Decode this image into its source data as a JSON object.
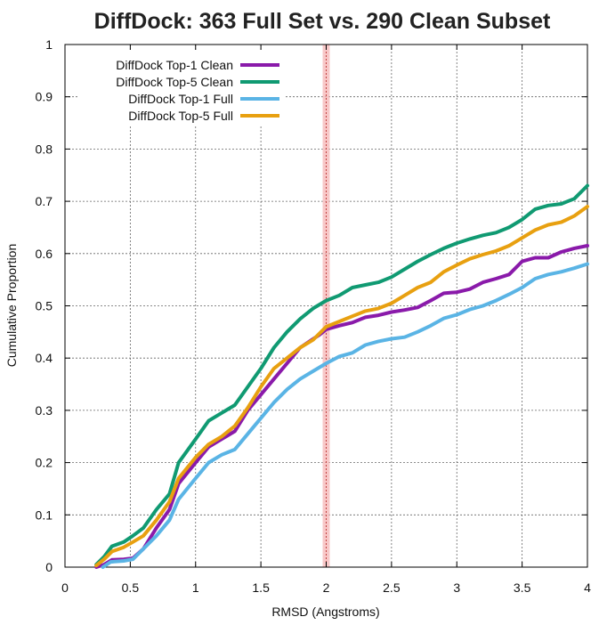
{
  "chart_data": {
    "type": "line",
    "title": "DiffDock: 363 Full Set vs. 290 Clean Subset",
    "xlabel": "RMSD (Angstroms)",
    "ylabel": "Cumulative Proportion",
    "xlim": [
      0,
      4
    ],
    "ylim": [
      0,
      1
    ],
    "x_ticks": [
      "0",
      "0.5",
      "1",
      "1.5",
      "2",
      "2.5",
      "3",
      "3.5",
      "4"
    ],
    "y_ticks": [
      "0",
      "0.1",
      "0.2",
      "0.3",
      "0.4",
      "0.5",
      "0.6",
      "0.7",
      "0.8",
      "0.9",
      "1"
    ],
    "grid": true,
    "legend_position": "top-left",
    "threshold_line": {
      "x": 2,
      "color": "#f6b6b6"
    },
    "series": [
      {
        "name": "DiffDock Top-1 Clean",
        "color": "#8a1aaa",
        "points": [
          [
            0.24,
            0.0
          ],
          [
            0.3,
            0.005
          ],
          [
            0.36,
            0.014
          ],
          [
            0.45,
            0.015
          ],
          [
            0.52,
            0.017
          ],
          [
            0.6,
            0.035
          ],
          [
            0.7,
            0.075
          ],
          [
            0.8,
            0.11
          ],
          [
            0.87,
            0.16
          ],
          [
            1.0,
            0.2
          ],
          [
            1.1,
            0.23
          ],
          [
            1.2,
            0.245
          ],
          [
            1.3,
            0.26
          ],
          [
            1.4,
            0.3
          ],
          [
            1.5,
            0.33
          ],
          [
            1.6,
            0.36
          ],
          [
            1.7,
            0.39
          ],
          [
            1.8,
            0.42
          ],
          [
            1.95,
            0.445
          ],
          [
            2.0,
            0.455
          ],
          [
            2.1,
            0.462
          ],
          [
            2.2,
            0.468
          ],
          [
            2.3,
            0.478
          ],
          [
            2.4,
            0.482
          ],
          [
            2.5,
            0.488
          ],
          [
            2.6,
            0.492
          ],
          [
            2.7,
            0.497
          ],
          [
            2.8,
            0.51
          ],
          [
            2.9,
            0.524
          ],
          [
            3.0,
            0.526
          ],
          [
            3.1,
            0.532
          ],
          [
            3.2,
            0.545
          ],
          [
            3.3,
            0.552
          ],
          [
            3.4,
            0.56
          ],
          [
            3.5,
            0.585
          ],
          [
            3.6,
            0.592
          ],
          [
            3.7,
            0.592
          ],
          [
            3.8,
            0.603
          ],
          [
            3.9,
            0.61
          ],
          [
            4.0,
            0.615
          ]
        ]
      },
      {
        "name": "DiffDock Top-5 Clean",
        "color": "#109a72",
        "points": [
          [
            0.24,
            0.005
          ],
          [
            0.3,
            0.02
          ],
          [
            0.36,
            0.04
          ],
          [
            0.45,
            0.048
          ],
          [
            0.52,
            0.06
          ],
          [
            0.6,
            0.075
          ],
          [
            0.7,
            0.11
          ],
          [
            0.8,
            0.14
          ],
          [
            0.87,
            0.2
          ],
          [
            1.0,
            0.245
          ],
          [
            1.1,
            0.28
          ],
          [
            1.2,
            0.295
          ],
          [
            1.3,
            0.31
          ],
          [
            1.4,
            0.345
          ],
          [
            1.5,
            0.38
          ],
          [
            1.6,
            0.42
          ],
          [
            1.7,
            0.45
          ],
          [
            1.8,
            0.475
          ],
          [
            1.9,
            0.495
          ],
          [
            2.0,
            0.51
          ],
          [
            2.1,
            0.52
          ],
          [
            2.2,
            0.535
          ],
          [
            2.3,
            0.54
          ],
          [
            2.4,
            0.545
          ],
          [
            2.5,
            0.555
          ],
          [
            2.6,
            0.57
          ],
          [
            2.7,
            0.585
          ],
          [
            2.8,
            0.598
          ],
          [
            2.9,
            0.61
          ],
          [
            3.0,
            0.62
          ],
          [
            3.1,
            0.628
          ],
          [
            3.2,
            0.635
          ],
          [
            3.3,
            0.64
          ],
          [
            3.4,
            0.65
          ],
          [
            3.5,
            0.665
          ],
          [
            3.6,
            0.685
          ],
          [
            3.7,
            0.692
          ],
          [
            3.8,
            0.695
          ],
          [
            3.9,
            0.705
          ],
          [
            4.0,
            0.73
          ]
        ]
      },
      {
        "name": "DiffDock Top-1 Full",
        "color": "#5ab4e5",
        "points": [
          [
            0.29,
            0.0
          ],
          [
            0.35,
            0.01
          ],
          [
            0.45,
            0.012
          ],
          [
            0.52,
            0.015
          ],
          [
            0.6,
            0.035
          ],
          [
            0.7,
            0.06
          ],
          [
            0.8,
            0.09
          ],
          [
            0.87,
            0.13
          ],
          [
            1.0,
            0.17
          ],
          [
            1.1,
            0.2
          ],
          [
            1.2,
            0.215
          ],
          [
            1.3,
            0.225
          ],
          [
            1.4,
            0.255
          ],
          [
            1.5,
            0.285
          ],
          [
            1.6,
            0.315
          ],
          [
            1.7,
            0.34
          ],
          [
            1.8,
            0.36
          ],
          [
            1.9,
            0.375
          ],
          [
            2.0,
            0.39
          ],
          [
            2.1,
            0.403
          ],
          [
            2.2,
            0.41
          ],
          [
            2.3,
            0.425
          ],
          [
            2.4,
            0.432
          ],
          [
            2.5,
            0.437
          ],
          [
            2.6,
            0.44
          ],
          [
            2.7,
            0.45
          ],
          [
            2.8,
            0.462
          ],
          [
            2.9,
            0.476
          ],
          [
            3.0,
            0.483
          ],
          [
            3.1,
            0.493
          ],
          [
            3.2,
            0.5
          ],
          [
            3.3,
            0.51
          ],
          [
            3.4,
            0.522
          ],
          [
            3.5,
            0.535
          ],
          [
            3.6,
            0.552
          ],
          [
            3.7,
            0.56
          ],
          [
            3.8,
            0.565
          ],
          [
            3.9,
            0.572
          ],
          [
            4.0,
            0.58
          ]
        ]
      },
      {
        "name": "DiffDock Top-5 Full",
        "color": "#e8a010",
        "points": [
          [
            0.24,
            0.003
          ],
          [
            0.3,
            0.015
          ],
          [
            0.36,
            0.03
          ],
          [
            0.45,
            0.038
          ],
          [
            0.52,
            0.048
          ],
          [
            0.6,
            0.06
          ],
          [
            0.7,
            0.09
          ],
          [
            0.8,
            0.125
          ],
          [
            0.87,
            0.17
          ],
          [
            1.0,
            0.21
          ],
          [
            1.1,
            0.235
          ],
          [
            1.2,
            0.25
          ],
          [
            1.3,
            0.27
          ],
          [
            1.4,
            0.305
          ],
          [
            1.5,
            0.345
          ],
          [
            1.6,
            0.38
          ],
          [
            1.7,
            0.4
          ],
          [
            1.8,
            0.42
          ],
          [
            1.9,
            0.435
          ],
          [
            2.0,
            0.46
          ],
          [
            2.1,
            0.47
          ],
          [
            2.2,
            0.48
          ],
          [
            2.3,
            0.49
          ],
          [
            2.4,
            0.495
          ],
          [
            2.5,
            0.505
          ],
          [
            2.6,
            0.52
          ],
          [
            2.7,
            0.535
          ],
          [
            2.8,
            0.545
          ],
          [
            2.9,
            0.565
          ],
          [
            3.0,
            0.578
          ],
          [
            3.1,
            0.59
          ],
          [
            3.2,
            0.598
          ],
          [
            3.3,
            0.605
          ],
          [
            3.4,
            0.615
          ],
          [
            3.5,
            0.63
          ],
          [
            3.6,
            0.645
          ],
          [
            3.7,
            0.655
          ],
          [
            3.8,
            0.66
          ],
          [
            3.9,
            0.672
          ],
          [
            4.0,
            0.69
          ]
        ]
      }
    ]
  }
}
